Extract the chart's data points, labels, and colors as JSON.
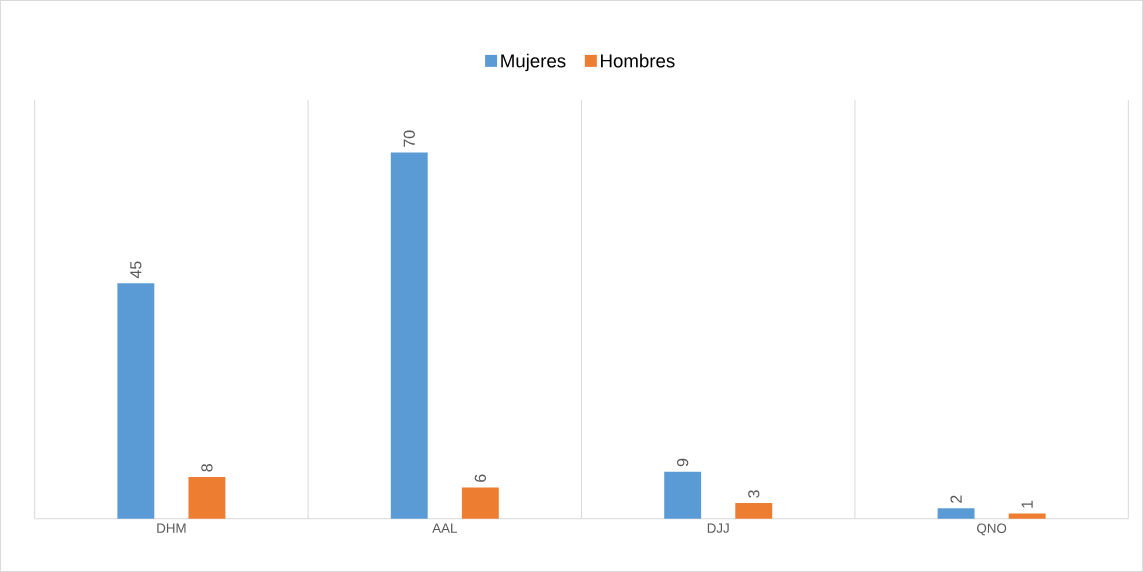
{
  "chart_data": {
    "type": "bar",
    "categories": [
      "DHM",
      "AAL",
      "DJJ",
      "QNO"
    ],
    "series": [
      {
        "name": "Mujeres",
        "color": "#5b9bd5",
        "values": [
          45,
          70,
          9,
          2
        ]
      },
      {
        "name": "Hombres",
        "color": "#ed7d31",
        "values": [
          8,
          6,
          3,
          1
        ]
      }
    ],
    "ylim": [
      0,
      80
    ],
    "data_labels": true,
    "grid": "x",
    "legend": "top",
    "tick_labels": "x"
  }
}
